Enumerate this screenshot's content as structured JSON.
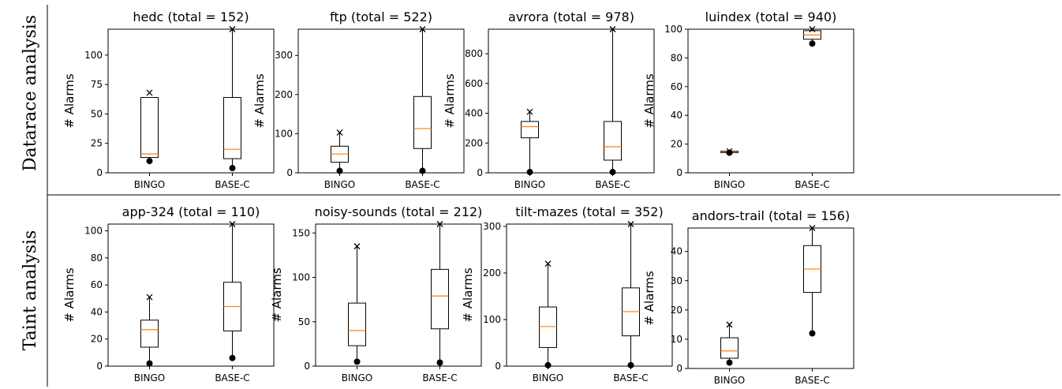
{
  "row_labels": [
    "Datarace analysis",
    "Taint analysis"
  ],
  "colors": {
    "median": "#ff7f0e",
    "box": "#000000",
    "divider": "#000000"
  },
  "chart_data": [
    {
      "type": "box",
      "title": "hedc (total = 152)",
      "ylabel": "# Alarms",
      "categories": [
        "BINGO",
        "BASE-C"
      ],
      "ylim": [
        0,
        122
      ],
      "yticks": [
        0,
        25,
        50,
        75,
        100
      ],
      "boxes": [
        {
          "name": "BINGO",
          "q1": 13,
          "median": 16,
          "q3": 64,
          "whisker_low": 13,
          "whisker_high": 64,
          "min_marker": 10,
          "max_marker": 68
        },
        {
          "name": "BASE-C",
          "q1": 12,
          "median": 20,
          "q3": 64,
          "whisker_low": 4,
          "whisker_high": 122,
          "min_marker": 4,
          "max_marker": 122
        }
      ]
    },
    {
      "type": "box",
      "title": "ftp (total = 522)",
      "ylabel": "# Alarms",
      "categories": [
        "BINGO",
        "BASE-C"
      ],
      "ylim": [
        0,
        367
      ],
      "yticks": [
        0,
        100,
        200,
        300
      ],
      "boxes": [
        {
          "name": "BINGO",
          "q1": 27,
          "median": 48,
          "q3": 68,
          "whisker_low": 5,
          "whisker_high": 103,
          "min_marker": 5,
          "max_marker": 103
        },
        {
          "name": "BASE-C",
          "q1": 62,
          "median": 113,
          "q3": 195,
          "whisker_low": 5,
          "whisker_high": 367,
          "min_marker": 5,
          "max_marker": 367
        }
      ]
    },
    {
      "type": "box",
      "title": "avrora (total = 978)",
      "ylabel": "# Alarms",
      "categories": [
        "BINGO",
        "BASE-C"
      ],
      "ylim": [
        0,
        965
      ],
      "yticks": [
        0,
        200,
        400,
        600,
        800
      ],
      "boxes": [
        {
          "name": "BINGO",
          "q1": 235,
          "median": 310,
          "q3": 345,
          "whisker_low": 5,
          "whisker_high": 410,
          "min_marker": 5,
          "max_marker": 410
        },
        {
          "name": "BASE-C",
          "q1": 85,
          "median": 175,
          "q3": 345,
          "whisker_low": 5,
          "whisker_high": 965,
          "min_marker": 5,
          "max_marker": 965
        }
      ]
    },
    {
      "type": "box",
      "title": "luindex (total = 940)",
      "ylabel": "# Alarms",
      "categories": [
        "BINGO",
        "BASE-C"
      ],
      "ylim": [
        0,
        100
      ],
      "yticks": [
        0,
        20,
        40,
        60,
        80,
        100
      ],
      "boxes": [
        {
          "name": "BINGO",
          "q1": 14,
          "median": 14.5,
          "q3": 15,
          "whisker_low": 14,
          "whisker_high": 15,
          "min_marker": 14,
          "max_marker": 15
        },
        {
          "name": "BASE-C",
          "q1": 93,
          "median": 96,
          "q3": 99,
          "whisker_low": 90,
          "whisker_high": 100,
          "min_marker": 90,
          "max_marker": 100
        }
      ]
    },
    {
      "type": "box",
      "title": "app-324 (total = 110)",
      "ylabel": "# Alarms",
      "categories": [
        "BINGO",
        "BASE-C"
      ],
      "ylim": [
        0,
        105
      ],
      "yticks": [
        0,
        20,
        40,
        60,
        80,
        100
      ],
      "boxes": [
        {
          "name": "BINGO",
          "q1": 14,
          "median": 27,
          "q3": 34,
          "whisker_low": 2,
          "whisker_high": 51,
          "min_marker": 2,
          "max_marker": 51
        },
        {
          "name": "BASE-C",
          "q1": 26,
          "median": 44,
          "q3": 62,
          "whisker_low": 6,
          "whisker_high": 105,
          "min_marker": 6,
          "max_marker": 105
        }
      ]
    },
    {
      "type": "box",
      "title": "noisy-sounds (total = 212)",
      "ylabel": "# Alarms",
      "categories": [
        "BINGO",
        "BASE-C"
      ],
      "ylim": [
        0,
        160
      ],
      "yticks": [
        0,
        50,
        100,
        150
      ],
      "boxes": [
        {
          "name": "BINGO",
          "q1": 23,
          "median": 40,
          "q3": 71,
          "whisker_low": 5,
          "whisker_high": 135,
          "min_marker": 5,
          "max_marker": 135
        },
        {
          "name": "BASE-C",
          "q1": 42,
          "median": 79,
          "q3": 109,
          "whisker_low": 4,
          "whisker_high": 160,
          "min_marker": 4,
          "max_marker": 160
        }
      ]
    },
    {
      "type": "box",
      "title": "tilt-mazes (total = 352)",
      "ylabel": "# Alarms",
      "categories": [
        "BINGO",
        "BASE-C"
      ],
      "ylim": [
        0,
        305
      ],
      "yticks": [
        0,
        100,
        200,
        300
      ],
      "boxes": [
        {
          "name": "BINGO",
          "q1": 40,
          "median": 85,
          "q3": 127,
          "whisker_low": 2,
          "whisker_high": 220,
          "min_marker": 2,
          "max_marker": 220
        },
        {
          "name": "BASE-C",
          "q1": 65,
          "median": 117,
          "q3": 168,
          "whisker_low": 2,
          "whisker_high": 305,
          "min_marker": 2,
          "max_marker": 305
        }
      ]
    },
    {
      "type": "box",
      "title": "andors-trail (total = 156)",
      "ylabel": "# Alarms",
      "categories": [
        "BINGO",
        "BASE-C"
      ],
      "ylim": [
        0,
        48
      ],
      "yticks": [
        0,
        10,
        20,
        30,
        40
      ],
      "boxes": [
        {
          "name": "BINGO",
          "q1": 3.5,
          "median": 6,
          "q3": 10.5,
          "whisker_low": 2,
          "whisker_high": 15,
          "min_marker": 2,
          "max_marker": 15
        },
        {
          "name": "BASE-C",
          "q1": 26,
          "median": 34,
          "q3": 42,
          "whisker_low": 12,
          "whisker_high": 48,
          "min_marker": 12,
          "max_marker": 48
        }
      ]
    }
  ]
}
